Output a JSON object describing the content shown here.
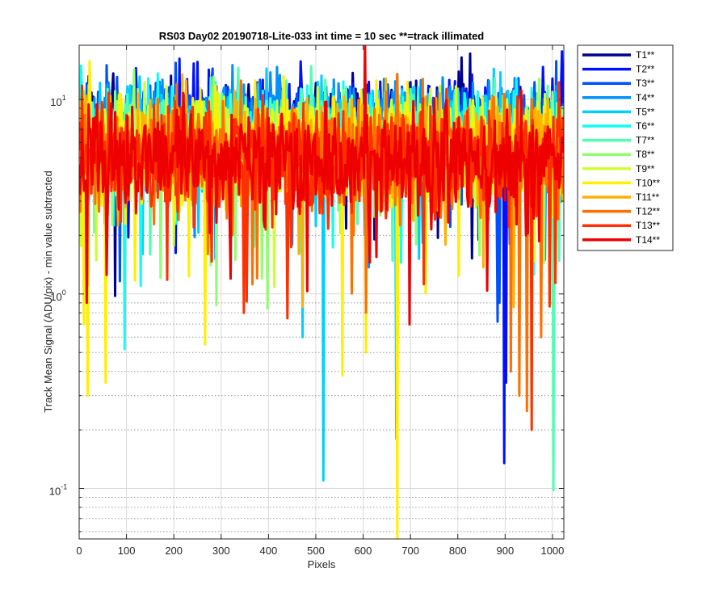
{
  "chart_data": {
    "type": "line",
    "title": "RS03 Day02 20190718-Lite-033 int time = 10 sec    **=track illimated",
    "xlabel": "Pixels",
    "ylabel": "Track Mean Signal (ADU/pix) - min value subtracted",
    "xlim": [
      0,
      1024
    ],
    "ylim": [
      0.055,
      19
    ],
    "y_scale": "log",
    "grid": "on",
    "legend_location": "outside-right-top",
    "x_ticks": [
      0,
      100,
      200,
      300,
      400,
      500,
      600,
      700,
      800,
      900,
      1000
    ],
    "y_ticks": [
      {
        "value": 0.1,
        "base": "10",
        "exp": "-1"
      },
      {
        "value": 1,
        "base": "10",
        "exp": "0"
      },
      {
        "value": 10,
        "base": "10",
        "exp": "1"
      }
    ],
    "series": [
      {
        "name": "T1**",
        "color": "#00008f",
        "typical": 7.5,
        "spread": 0.35
      },
      {
        "name": "T2**",
        "color": "#0010ff",
        "typical": 7.5,
        "spread": 0.35,
        "dips": [
          [
            897,
            0.135
          ],
          [
            902,
            0.35
          ]
        ]
      },
      {
        "name": "T3**",
        "color": "#0050ff",
        "typical": 7.3,
        "spread": 0.36,
        "dips": [
          [
            884,
            0.72
          ],
          [
            887,
            0.9
          ]
        ]
      },
      {
        "name": "T4**",
        "color": "#0090ff",
        "typical": 7.0,
        "spread": 0.37
      },
      {
        "name": "T5**",
        "color": "#00d0ff",
        "typical": 6.8,
        "spread": 0.38,
        "dips": [
          [
            515,
            0.11
          ],
          [
            670,
            0.18
          ],
          [
            472,
            0.6
          ]
        ]
      },
      {
        "name": "T6**",
        "color": "#10ffef",
        "typical": 6.5,
        "spread": 0.38,
        "dips": [
          [
            95,
            0.52
          ],
          [
            130,
            1.1
          ]
        ]
      },
      {
        "name": "T7**",
        "color": "#50ffaf",
        "typical": 6.3,
        "spread": 0.39,
        "dips": [
          [
            1002,
            0.098
          ],
          [
            150,
            1.6
          ]
        ]
      },
      {
        "name": "T8**",
        "color": "#90ff6f",
        "typical": 6.0,
        "spread": 0.4,
        "dips": [
          [
            385,
            1.2
          ],
          [
            330,
            1.5
          ]
        ]
      },
      {
        "name": "T9**",
        "color": "#d0ff2f",
        "typical": 5.8,
        "spread": 0.4
      },
      {
        "name": "T10**",
        "color": "#ffef00",
        "typical": 5.6,
        "spread": 0.42,
        "dips": [
          [
            672,
            0.055
          ],
          [
            17,
            0.3
          ],
          [
            55,
            0.35
          ],
          [
            265,
            0.55
          ],
          [
            605,
            0.5
          ],
          [
            555,
            0.38
          ],
          [
            10,
            0.7
          ]
        ]
      },
      {
        "name": "T11**",
        "color": "#ffb000",
        "typical": 5.4,
        "spread": 0.42
      },
      {
        "name": "T12**",
        "color": "#ff7000",
        "typical": 5.2,
        "spread": 0.43,
        "dips": [
          [
            930,
            0.3
          ],
          [
            945,
            0.25
          ],
          [
            912,
            0.4
          ],
          [
            975,
            0.6
          ]
        ]
      },
      {
        "name": "T13**",
        "color": "#ff3000",
        "typical": 5.0,
        "spread": 0.43,
        "dips": [
          [
            955,
            0.2
          ],
          [
            348,
            0.8
          ],
          [
            440,
            0.75
          ]
        ]
      },
      {
        "name": "T14**",
        "color": "#ef0000",
        "typical": 4.9,
        "spread": 0.44,
        "peaks": [
          [
            603,
            19
          ]
        ],
        "dips": [
          [
            15,
            0.9
          ],
          [
            320,
            1.2
          ]
        ]
      }
    ]
  }
}
